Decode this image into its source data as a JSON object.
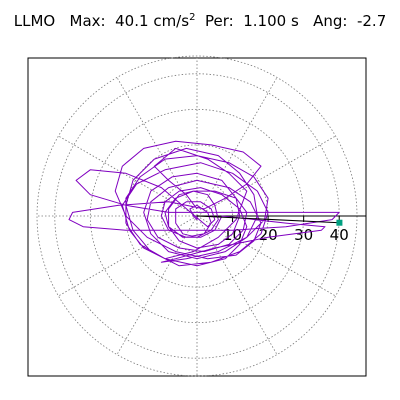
{
  "chart_data": {
    "type": "line",
    "title": {
      "station": "LLMO",
      "max_label": "Max:",
      "max_value": "40.1",
      "max_unit": "cm/s",
      "max_unit_exp": "2",
      "per_label": "Per:",
      "per_value": "1.100 s",
      "ang_label": "Ang:",
      "ang_value": "-2.7"
    },
    "polar_axis": {
      "rmax": 45,
      "rings": [
        10,
        20,
        30,
        40
      ],
      "tick_labels": [
        "10",
        "20",
        "30",
        "40"
      ],
      "spoke_step_deg": 30,
      "grid": true
    },
    "series": [
      {
        "color": "#8000c0",
        "points": [
          [
            0,
            2
          ],
          [
            -3,
            6
          ],
          [
            -8,
            10
          ],
          [
            -12,
            14
          ],
          [
            -6,
            19
          ],
          [
            3,
            16
          ],
          [
            9,
            12
          ],
          [
            14,
            7
          ],
          [
            11,
            -1
          ],
          [
            6,
            -6
          ],
          [
            -1,
            -10
          ],
          [
            -9,
            -12
          ],
          [
            -15,
            -9
          ],
          [
            -19,
            -4
          ],
          [
            -21,
            3
          ],
          [
            -17,
            9
          ],
          [
            -9,
            13
          ],
          [
            1,
            15
          ],
          [
            10,
            12
          ],
          [
            17,
            7
          ],
          [
            20,
            1
          ],
          [
            18,
            -5
          ],
          [
            12,
            -10
          ],
          [
            4,
            -13
          ],
          [
            -5,
            -14
          ],
          [
            -13,
            -10
          ],
          [
            -18,
            -4
          ],
          [
            -20,
            3
          ],
          [
            -18,
            10
          ],
          [
            -12,
            16
          ],
          [
            -3,
            19
          ],
          [
            6,
            17
          ],
          [
            12,
            12
          ],
          [
            16,
            6
          ],
          [
            17,
            0
          ],
          [
            14,
            -6
          ],
          [
            8,
            -10
          ],
          [
            0,
            -12
          ],
          [
            -8,
            -10
          ],
          [
            -13,
            -5
          ],
          [
            -15,
            1
          ],
          [
            -13,
            7
          ],
          [
            -7,
            11
          ],
          [
            0,
            12
          ],
          [
            7,
            10
          ],
          [
            11,
            5
          ],
          [
            12,
            0
          ],
          [
            10,
            -5
          ],
          [
            6,
            -8
          ],
          [
            0,
            -9
          ],
          [
            -5,
            -7
          ],
          [
            -8,
            -3
          ],
          [
            -8,
            2
          ],
          [
            -5,
            6
          ],
          [
            -1,
            7
          ],
          [
            3,
            6
          ],
          [
            5,
            3
          ],
          [
            6,
            -1
          ],
          [
            4,
            -4
          ],
          [
            0,
            -6
          ],
          [
            -4,
            -5
          ],
          [
            -6,
            -2
          ],
          [
            -6,
            2
          ],
          [
            -3,
            4
          ],
          [
            1,
            4
          ],
          [
            4,
            2
          ],
          [
            5,
            -1
          ],
          [
            3,
            -3
          ],
          [
            -10,
            8
          ],
          [
            -20,
            12
          ],
          [
            -30,
            13
          ],
          [
            -34,
            10
          ],
          [
            -30,
            6
          ],
          [
            -20,
            3
          ],
          [
            -8,
            1
          ],
          [
            5,
            1
          ],
          [
            18,
            1
          ],
          [
            30,
            1
          ],
          [
            40,
            1
          ],
          [
            38,
            -1
          ],
          [
            25,
            -3
          ],
          [
            10,
            -4
          ],
          [
            -5,
            -4
          ],
          [
            -20,
            -4
          ],
          [
            -32,
            -3
          ],
          [
            -36,
            -1
          ],
          [
            -35,
            1
          ],
          [
            -22,
            3
          ],
          [
            -8,
            4
          ],
          [
            2,
            2
          ],
          [
            8,
            5
          ],
          [
            14,
            9
          ],
          [
            18,
            14
          ],
          [
            13,
            18
          ],
          [
            4,
            20
          ],
          [
            -6,
            21
          ],
          [
            -15,
            19
          ],
          [
            -21,
            14
          ],
          [
            -23,
            7
          ],
          [
            -20,
            0
          ],
          [
            -14,
            -6
          ],
          [
            -6,
            -10
          ],
          [
            3,
            -12
          ],
          [
            11,
            -11
          ],
          [
            16,
            -7
          ],
          [
            18,
            -2
          ],
          [
            15,
            4
          ],
          [
            9,
            8
          ],
          [
            0,
            10
          ],
          [
            -8,
            8
          ],
          [
            -13,
            4
          ],
          [
            -14,
            -1
          ],
          [
            -11,
            -6
          ],
          [
            -5,
            -9
          ],
          [
            2,
            -10
          ],
          [
            9,
            -8
          ],
          [
            13,
            -4
          ],
          [
            14,
            1
          ],
          [
            11,
            5
          ],
          [
            5,
            7
          ],
          [
            -1,
            7
          ],
          [
            -6,
            5
          ],
          [
            -9,
            1
          ],
          [
            -8,
            -3
          ],
          [
            -4,
            -6
          ],
          [
            1,
            -6
          ],
          [
            5,
            -4
          ],
          [
            7,
            0
          ],
          [
            25,
            -2
          ],
          [
            36,
            -3
          ],
          [
            35,
            -4
          ],
          [
            20,
            -6
          ],
          [
            5,
            -9
          ],
          [
            -6,
            -12
          ],
          [
            -10,
            -13
          ],
          [
            -3,
            -12
          ],
          [
            6,
            -10
          ],
          [
            14,
            -6
          ],
          [
            19,
            -1
          ],
          [
            20,
            5
          ],
          [
            16,
            11
          ],
          [
            9,
            15
          ],
          [
            0,
            17
          ],
          [
            -9,
            16
          ],
          [
            -16,
            11
          ],
          [
            -20,
            5
          ],
          [
            -20,
            -2
          ],
          [
            -16,
            -8
          ],
          [
            -9,
            -12
          ],
          [
            0,
            -14
          ],
          [
            8,
            -12
          ],
          [
            12,
            -8
          ],
          [
            14,
            -3
          ],
          [
            12,
            2
          ],
          [
            7,
            6
          ],
          [
            1,
            8
          ],
          [
            -5,
            7
          ],
          [
            -9,
            4
          ],
          [
            -10,
            0
          ],
          [
            -8,
            -4
          ],
          [
            -3,
            -6
          ],
          [
            2,
            -5
          ],
          [
            4,
            -2
          ],
          [
            3,
            1
          ],
          [
            0,
            3
          ],
          [
            -2,
            2
          ],
          [
            -1,
            0
          ],
          [
            0,
            -1
          ],
          [
            0,
            0
          ]
        ]
      }
    ],
    "marker": {
      "r": 40.1,
      "angle_deg": -2.7,
      "color": "#00a080"
    }
  }
}
